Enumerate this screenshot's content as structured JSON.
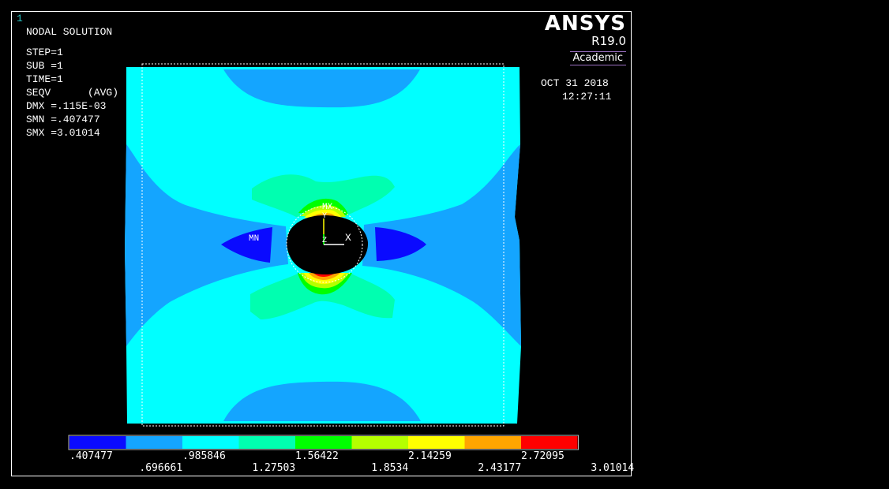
{
  "window_number": "1",
  "result_header": {
    "title": "NODAL SOLUTION",
    "lines": [
      "STEP=1",
      "SUB =1",
      "TIME=1",
      "SEQV      (AVG)",
      "DMX =.115E-03",
      "SMN =.407477",
      "SMX =3.01014"
    ]
  },
  "branding": {
    "product": "ANSYS",
    "version": "R19.0",
    "edition": "Academic"
  },
  "date": "OCT 31 2018",
  "time": "12:27:11",
  "markers": {
    "min": "MN",
    "max": "MX",
    "axis_y": "Y",
    "axis_z": "Z",
    "axis_x": "X"
  },
  "legend": {
    "colors": [
      "#0a0aff",
      "#14a5ff",
      "#00ffff",
      "#00ffb0",
      "#00ff00",
      "#b5ff00",
      "#ffff00",
      "#ffa500",
      "#ff0000"
    ],
    "labels_top": [
      ".407477",
      ".985846",
      "1.56422",
      "2.14259",
      "2.72095"
    ],
    "labels_bottom": [
      ".696661",
      "1.27503",
      "1.8534",
      "2.43177",
      "3.01014"
    ]
  }
}
